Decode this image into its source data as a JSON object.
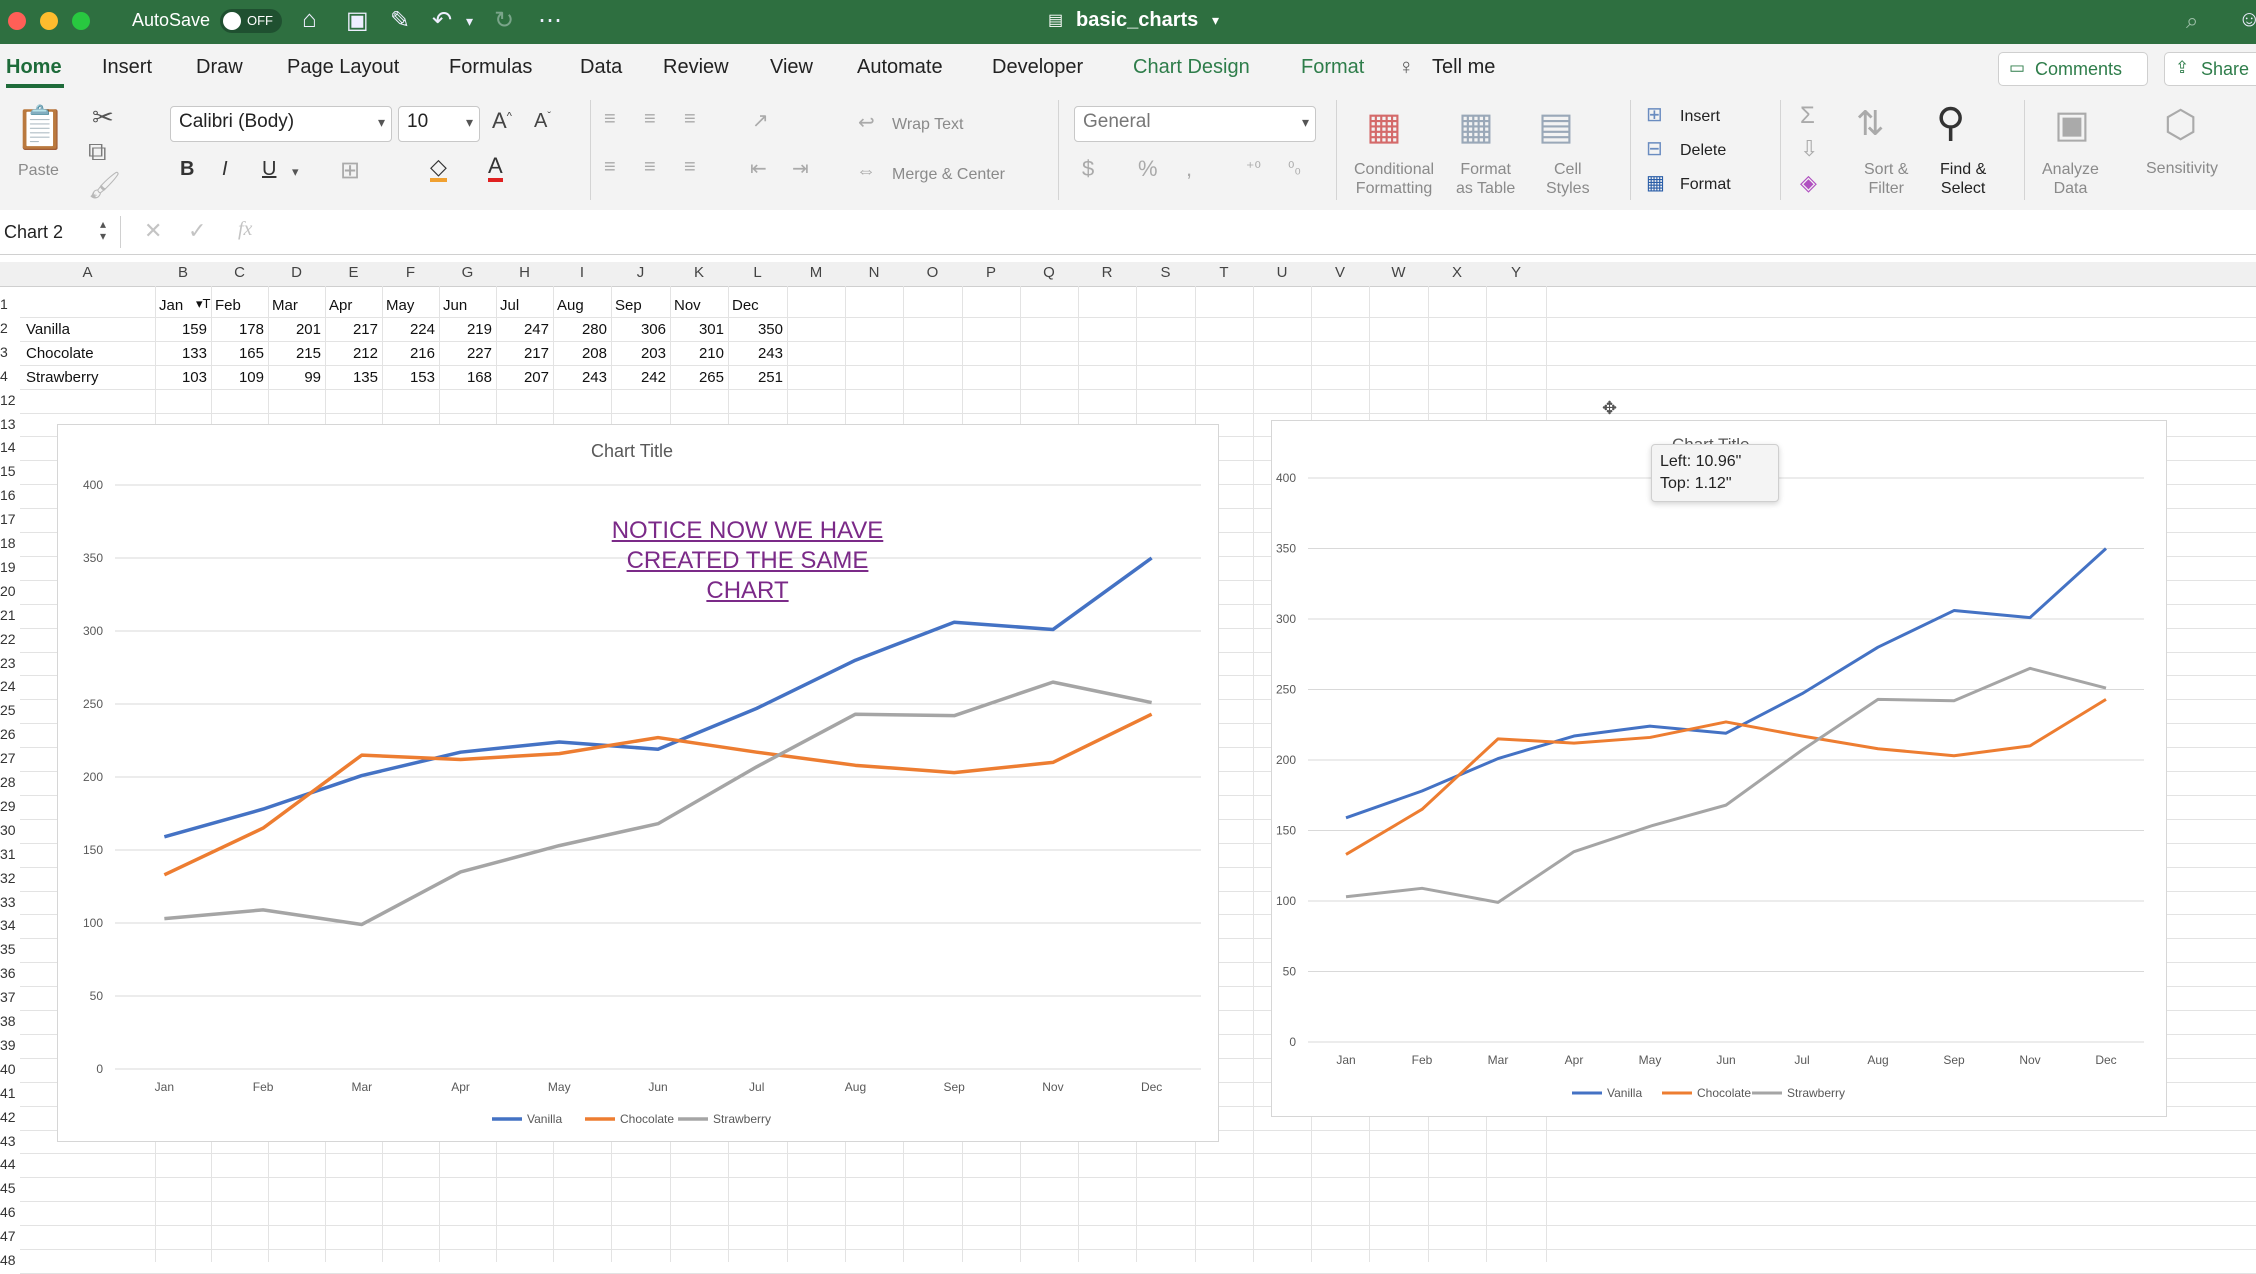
{
  "titlebar": {
    "autosave_label": "AutoSave",
    "autosave_state": "OFF",
    "file_name": "basic_charts"
  },
  "menu_tabs": [
    "Home",
    "Insert",
    "Draw",
    "Page Layout",
    "Formulas",
    "Data",
    "Review",
    "View",
    "Automate",
    "Developer",
    "Chart Design",
    "Format"
  ],
  "tell_me": "Tell me",
  "comments_label": "Comments",
  "share_label": "Share",
  "ribbon": {
    "paste": "Paste",
    "font_name": "Calibri (Body)",
    "font_size": "10",
    "wrap_text": "Wrap Text",
    "merge_center": "Merge & Center",
    "number_format": "General",
    "conditional_formatting": [
      "Conditional",
      "Formatting"
    ],
    "format_as_table": [
      "Format",
      "as Table"
    ],
    "cell_styles": [
      "Cell",
      "Styles"
    ],
    "insert": "Insert",
    "delete": "Delete",
    "format": "Format",
    "sort_filter": [
      "Sort &",
      "Filter"
    ],
    "find_select": [
      "Find &",
      "Select"
    ],
    "analyze_data": [
      "Analyze",
      "Data"
    ],
    "sensitivity": "Sensitivity"
  },
  "formula_bar": {
    "name_box": "Chart 2",
    "fx": "fx",
    "content": ""
  },
  "columns": [
    "A",
    "B",
    "C",
    "D",
    "E",
    "F",
    "G",
    "H",
    "I",
    "J",
    "K",
    "L",
    "M",
    "N",
    "O",
    "P",
    "Q",
    "R",
    "S",
    "T",
    "U",
    "V",
    "W",
    "X",
    "Y"
  ],
  "row_numbers": [
    "1",
    "2",
    "3",
    "4",
    "12",
    "13",
    "14",
    "15",
    "16",
    "17",
    "18",
    "19",
    "20",
    "21",
    "22",
    "23",
    "24",
    "25",
    "26",
    "27",
    "28",
    "29",
    "30",
    "31",
    "32",
    "33",
    "34",
    "35",
    "36",
    "37",
    "38",
    "39",
    "40",
    "41",
    "42",
    "43",
    "44",
    "45",
    "46",
    "47",
    "48"
  ],
  "sheet": {
    "header_row": [
      "Jan",
      "Feb",
      "Mar",
      "Apr",
      "May",
      "Jun",
      "Jul",
      "Aug",
      "Sep",
      "Nov",
      "Dec"
    ],
    "rows": [
      {
        "name": "Vanilla",
        "values": [
          "159",
          "178",
          "201",
          "217",
          "224",
          "219",
          "247",
          "280",
          "306",
          "301",
          "350"
        ]
      },
      {
        "name": "Chocolate",
        "values": [
          "133",
          "165",
          "215",
          "212",
          "216",
          "227",
          "217",
          "208",
          "203",
          "210",
          "243"
        ]
      },
      {
        "name": "Strawberry",
        "values": [
          "103",
          "109",
          "99",
          "135",
          "153",
          "168",
          "207",
          "243",
          "242",
          "265",
          "251"
        ]
      }
    ]
  },
  "annotation": "NOTICE NOW WE HAVE CREATED THE SAME CHART",
  "tooltip": {
    "left": "Left: 10.96\"",
    "top": "Top: 1.12\""
  },
  "colors": {
    "vanilla": "#4472c4",
    "chocolate": "#ed7d31",
    "strawberry": "#a5a5a5",
    "titlebar": "#2e6f40"
  },
  "chart_data": [
    {
      "type": "line",
      "title": "Chart Title",
      "categories": [
        "Jan",
        "Feb",
        "Mar",
        "Apr",
        "May",
        "Jun",
        "Jul",
        "Aug",
        "Sep",
        "Nov",
        "Dec"
      ],
      "series": [
        {
          "name": "Vanilla",
          "values": [
            159,
            178,
            201,
            217,
            224,
            219,
            247,
            280,
            306,
            301,
            350
          ]
        },
        {
          "name": "Chocolate",
          "values": [
            133,
            165,
            215,
            212,
            216,
            227,
            217,
            208,
            203,
            210,
            243
          ]
        },
        {
          "name": "Strawberry",
          "values": [
            103,
            109,
            99,
            135,
            153,
            168,
            207,
            243,
            242,
            265,
            251
          ]
        }
      ],
      "yticks": [
        "0",
        "50",
        "100",
        "150",
        "200",
        "250",
        "300",
        "350",
        "400"
      ],
      "ylim": [
        0,
        400
      ],
      "grid": true,
      "legend": "bottom"
    },
    {
      "type": "line",
      "title": "Chart Title",
      "categories": [
        "Jan",
        "Feb",
        "Mar",
        "Apr",
        "May",
        "Jun",
        "Jul",
        "Aug",
        "Sep",
        "Nov",
        "Dec"
      ],
      "series": [
        {
          "name": "Vanilla",
          "values": [
            159,
            178,
            201,
            217,
            224,
            219,
            247,
            280,
            306,
            301,
            350
          ]
        },
        {
          "name": "Chocolate",
          "values": [
            133,
            165,
            215,
            212,
            216,
            227,
            217,
            208,
            203,
            210,
            243
          ]
        },
        {
          "name": "Strawberry",
          "values": [
            103,
            109,
            99,
            135,
            153,
            168,
            207,
            243,
            242,
            265,
            251
          ]
        }
      ],
      "yticks": [
        "0",
        "50",
        "100",
        "150",
        "200",
        "250",
        "300",
        "350",
        "400"
      ],
      "ylim": [
        0,
        400
      ],
      "grid": true,
      "legend": "bottom"
    }
  ]
}
